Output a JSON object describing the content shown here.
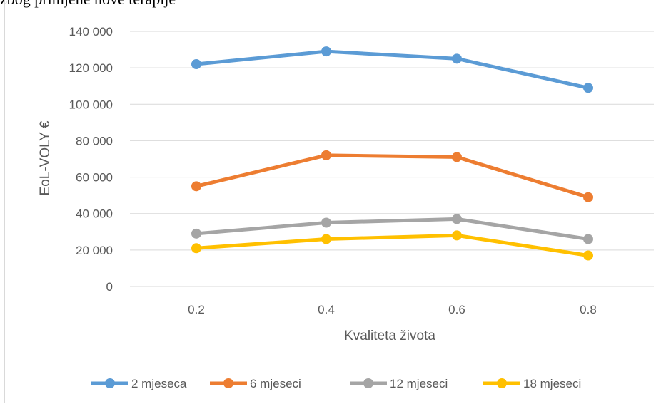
{
  "caption": "zbog primjene nove terapije",
  "chart_data": {
    "type": "line",
    "title": "",
    "xlabel": "Kvaliteta života",
    "ylabel": "EoL-VOLY €",
    "categories": [
      "0.2",
      "0.4",
      "0.6",
      "0.8"
    ],
    "ylim": [
      0,
      140000
    ],
    "yticks": [
      "0",
      "20 000",
      "40 000",
      "60 000",
      "80 000",
      "100 000",
      "120 000",
      "140 000"
    ],
    "grid": true,
    "legend": "bottom",
    "series": [
      {
        "name": "2 mjeseca",
        "color": "#5b9bd5",
        "values": [
          122000,
          129000,
          125000,
          109000
        ]
      },
      {
        "name": "6 mjeseci",
        "color": "#ed7d31",
        "values": [
          55000,
          72000,
          71000,
          49000
        ]
      },
      {
        "name": "12 mjeseci",
        "color": "#a5a5a5",
        "values": [
          29000,
          35000,
          37000,
          26000
        ]
      },
      {
        "name": "18 mjeseci",
        "color": "#ffc000",
        "values": [
          21000,
          26000,
          28000,
          17000
        ]
      }
    ]
  }
}
